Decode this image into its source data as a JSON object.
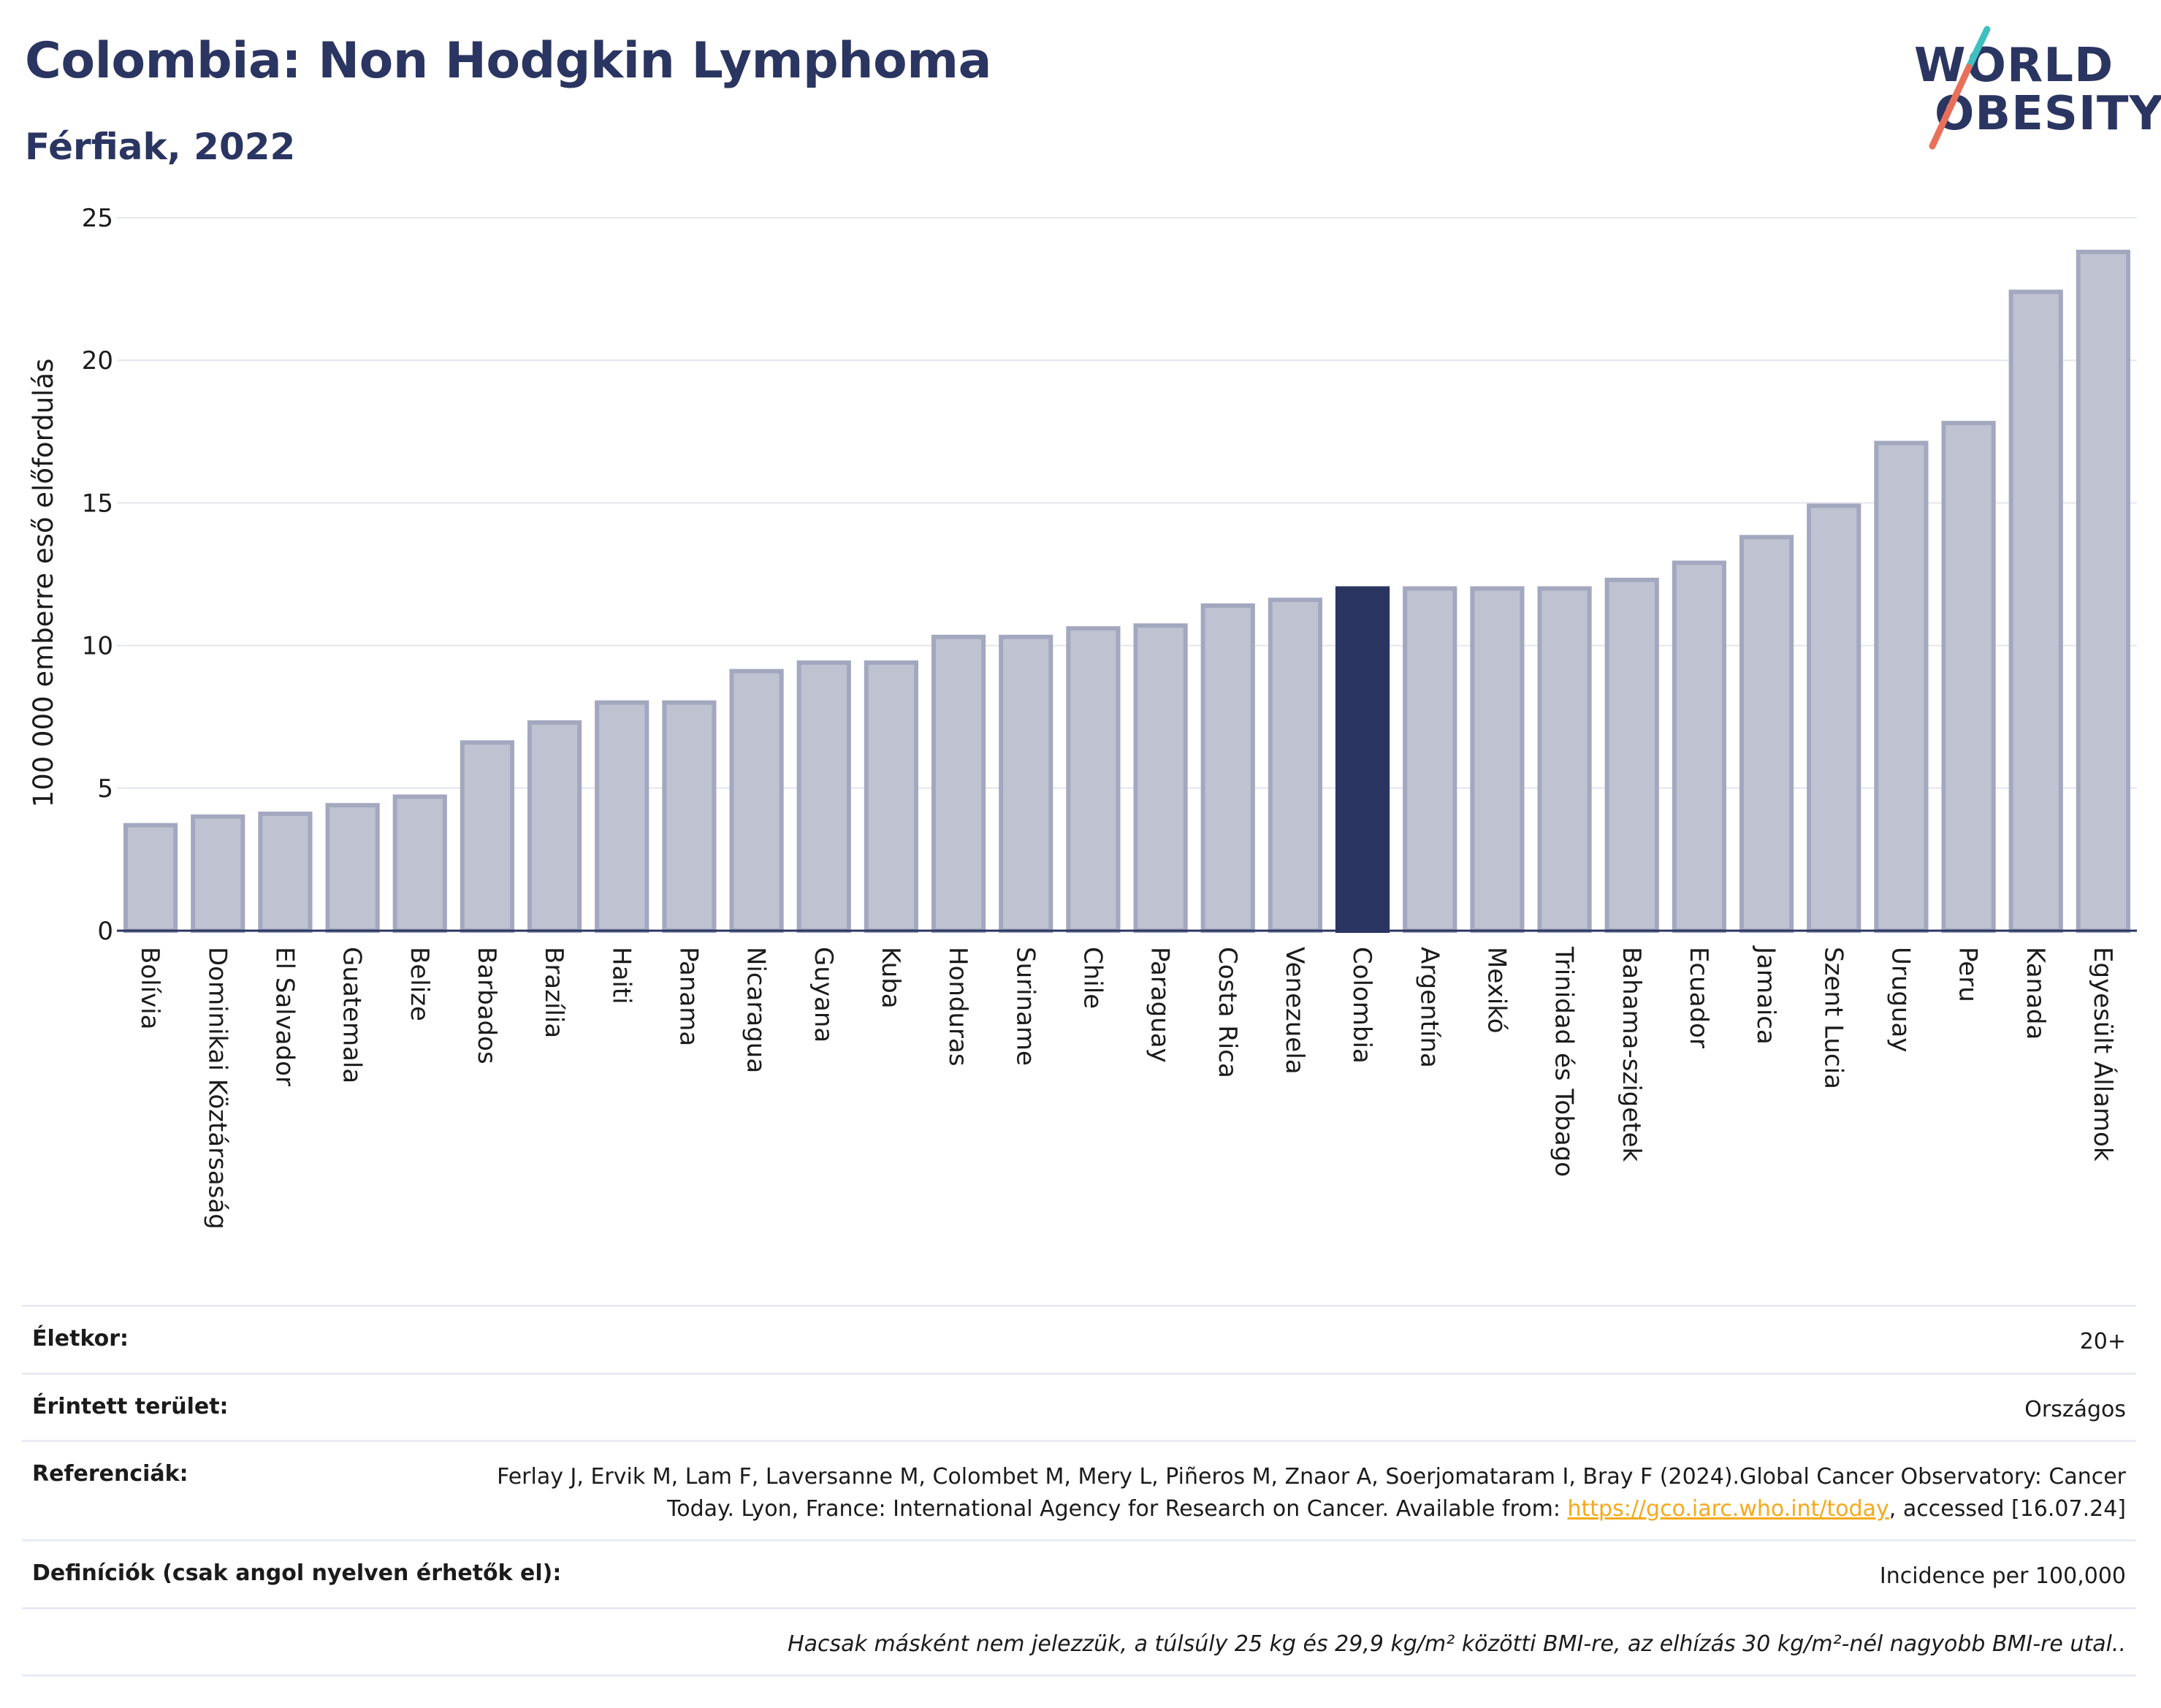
{
  "header": {
    "title": "Colombia: Non Hodgkin Lymphoma",
    "subtitle": "Férfiak, 2022"
  },
  "logo": {
    "line1": "WORLD",
    "line2": "OBESITY",
    "accent_colors": [
      "#3fbfbf",
      "#e8705a"
    ]
  },
  "chart_data": {
    "type": "bar",
    "ylabel": "100 000 emberre eső előfordulás",
    "ylim": [
      0,
      25
    ],
    "yticks": [
      0,
      5,
      10,
      15,
      20,
      25
    ],
    "grid": true,
    "highlight": "Colombia",
    "colors": {
      "bar": "#bfc3d1",
      "bar_edge": "#a3a8bf",
      "highlight": "#2b3561"
    },
    "categories": [
      "Bolívia",
      "Dominikai Köztársaság",
      "El Salvador",
      "Guatemala",
      "Belize",
      "Barbados",
      "Brazília",
      "Haiti",
      "Panama",
      "Nicaragua",
      "Guyana",
      "Kuba",
      "Honduras",
      "Suriname",
      "Chile",
      "Paraguay",
      "Costa Rica",
      "Venezuela",
      "Colombia",
      "Argentína",
      "Mexikó",
      "Trinidad és Tobago",
      "Bahama-szigetek",
      "Ecuador",
      "Jamaica",
      "Szent Lucia",
      "Uruguay",
      "Peru",
      "Kanada",
      "Egyesült Államok"
    ],
    "values": [
      3.7,
      4.0,
      4.1,
      4.4,
      4.7,
      6.6,
      7.3,
      8.0,
      8.0,
      9.1,
      9.4,
      9.4,
      10.3,
      10.3,
      10.6,
      10.7,
      11.4,
      11.6,
      12.0,
      12.0,
      12.0,
      12.0,
      12.3,
      12.9,
      13.8,
      14.9,
      17.1,
      17.8,
      22.4,
      23.8
    ]
  },
  "info": {
    "age_label": "Életkor:",
    "age_value": "20+",
    "area_label": "Érintett terület:",
    "area_value": "Országos",
    "ref_label": "Referenciák:",
    "ref_text": "Ferlay J, Ervik M, Lam F, Laversanne M, Colombet M, Mery L, Piñeros M, Znaor A, Soerjomataram I, Bray F (2024).Global Cancer Observatory: Cancer Today. Lyon, France: International Agency for Research on Cancer. Available from:",
    "ref_link": "https://gco.iarc.who.int/today",
    "ref_suffix": ", accessed [16.07.24]",
    "def_label": "Definíciók (csak angol nyelven érhetők el):",
    "def_value": "Incidence per 100,000",
    "note": "Hacsak másként nem jelezzük, a túlsúly 25 kg és 29,9 kg/m² közötti BMI-re, az elhízás 30 kg/m²-nél nagyobb BMI-re utal.."
  }
}
